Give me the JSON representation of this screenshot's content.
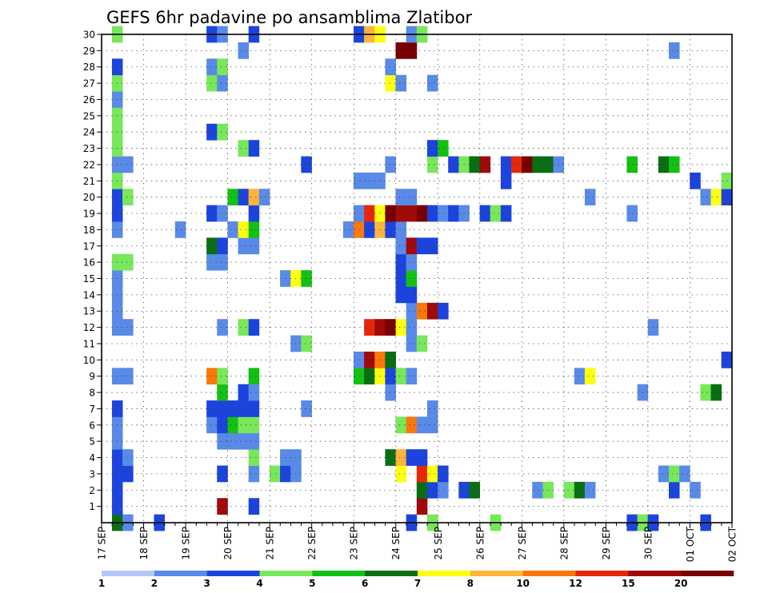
{
  "chart_data": {
    "type": "heatmap",
    "title": "GEFS 6hr padavine po ansamblima Zlatibor",
    "xlabel": "",
    "ylabel": "",
    "x_tick_labels": [
      "17 SEP",
      "18 SEP",
      "19 SEP",
      "20 SEP",
      "21 SEP",
      "22 SEP",
      "23 SEP",
      "24 SEP",
      "25 SEP",
      "26 SEP",
      "27 SEP",
      "28 SEP",
      "29 SEP",
      "30 SEP",
      "01 OCT",
      "02 OCT"
    ],
    "x_steps_per_day": 4,
    "x_range_steps": [
      0,
      60
    ],
    "y_tick_labels": [
      "1",
      "2",
      "3",
      "4",
      "5",
      "6",
      "7",
      "8",
      "9",
      "10",
      "11",
      "12",
      "13",
      "14",
      "15",
      "16",
      "17",
      "18",
      "19",
      "20",
      "21",
      "22",
      "23",
      "24",
      "25",
      "26",
      "27",
      "28",
      "29",
      "30"
    ],
    "y_range": [
      0,
      30
    ],
    "grid": true,
    "colorbar": {
      "placement": "bottom",
      "levels": [
        1,
        2,
        3,
        4,
        5,
        6,
        7,
        8,
        10,
        12,
        15,
        20
      ],
      "colors": [
        "#b4c8f6",
        "#5a8ae8",
        "#1c44dc",
        "#78e85a",
        "#14c014",
        "#0a6e14",
        "#ffff14",
        "#ffb43c",
        "#fa780a",
        "#e6280a",
        "#a00a0a",
        "#780000"
      ]
    },
    "cells": [
      [
        1,
        0,
        5
      ],
      [
        5,
        0,
        2
      ],
      [
        2,
        0,
        1
      ],
      [
        29,
        0,
        2
      ],
      [
        31,
        0,
        3
      ],
      [
        37,
        0,
        3
      ],
      [
        50,
        0,
        2
      ],
      [
        51,
        0,
        3
      ],
      [
        52,
        0,
        2
      ],
      [
        57,
        0,
        2
      ],
      [
        1,
        1,
        2
      ],
      [
        11,
        1,
        10
      ],
      [
        14,
        1,
        2
      ],
      [
        30,
        1,
        10
      ],
      [
        1,
        2,
        2
      ],
      [
        30,
        2,
        5
      ],
      [
        31,
        2,
        2
      ],
      [
        32,
        2,
        1
      ],
      [
        34,
        2,
        2
      ],
      [
        35,
        2,
        5
      ],
      [
        41,
        2,
        1
      ],
      [
        42,
        2,
        3
      ],
      [
        44,
        2,
        3
      ],
      [
        45,
        2,
        5
      ],
      [
        46,
        2,
        1
      ],
      [
        54,
        2,
        2
      ],
      [
        56,
        2,
        1
      ],
      [
        1,
        3,
        2
      ],
      [
        2,
        3,
        2
      ],
      [
        11,
        3,
        2
      ],
      [
        14,
        3,
        1
      ],
      [
        16,
        3,
        3
      ],
      [
        17,
        3,
        2
      ],
      [
        18,
        3,
        1
      ],
      [
        28,
        3,
        6
      ],
      [
        30,
        3,
        9
      ],
      [
        31,
        3,
        6
      ],
      [
        32,
        3,
        2
      ],
      [
        53,
        3,
        1
      ],
      [
        54,
        3,
        3
      ],
      [
        55,
        3,
        1
      ],
      [
        1,
        4,
        2
      ],
      [
        2,
        4,
        1
      ],
      [
        14,
        4,
        3
      ],
      [
        17,
        4,
        1
      ],
      [
        18,
        4,
        1
      ],
      [
        27,
        4,
        5
      ],
      [
        28,
        4,
        7
      ],
      [
        29,
        4,
        2
      ],
      [
        30,
        4,
        2
      ],
      [
        1,
        5,
        1
      ],
      [
        11,
        5,
        1
      ],
      [
        12,
        5,
        1
      ],
      [
        13,
        5,
        1
      ],
      [
        14,
        5,
        1
      ],
      [
        1,
        6,
        1
      ],
      [
        10,
        6,
        1
      ],
      [
        11,
        6,
        2
      ],
      [
        12,
        6,
        4
      ],
      [
        13,
        6,
        3
      ],
      [
        14,
        6,
        3
      ],
      [
        28,
        6,
        3
      ],
      [
        29,
        6,
        8
      ],
      [
        30,
        6,
        1
      ],
      [
        31,
        6,
        1
      ],
      [
        1,
        7,
        2
      ],
      [
        10,
        7,
        2
      ],
      [
        11,
        7,
        2
      ],
      [
        12,
        7,
        2
      ],
      [
        13,
        7,
        2
      ],
      [
        14,
        7,
        2
      ],
      [
        19,
        7,
        1
      ],
      [
        31,
        7,
        1
      ],
      [
        11,
        8,
        4
      ],
      [
        13,
        8,
        2
      ],
      [
        14,
        8,
        1
      ],
      [
        27,
        8,
        1
      ],
      [
        51,
        8,
        1
      ],
      [
        57,
        8,
        3
      ],
      [
        58,
        8,
        5
      ],
      [
        1,
        9,
        1
      ],
      [
        2,
        9,
        1
      ],
      [
        10,
        9,
        8
      ],
      [
        11,
        9,
        3
      ],
      [
        14,
        9,
        4
      ],
      [
        24,
        9,
        4
      ],
      [
        25,
        9,
        5
      ],
      [
        26,
        9,
        6
      ],
      [
        27,
        9,
        2
      ],
      [
        28,
        9,
        3
      ],
      [
        29,
        9,
        1
      ],
      [
        45,
        9,
        1
      ],
      [
        46,
        9,
        6
      ],
      [
        24,
        10,
        1
      ],
      [
        25,
        10,
        10
      ],
      [
        26,
        10,
        8
      ],
      [
        27,
        10,
        5
      ],
      [
        59,
        10,
        2
      ],
      [
        18,
        11,
        1
      ],
      [
        19,
        11,
        3
      ],
      [
        29,
        11,
        1
      ],
      [
        30,
        11,
        3
      ],
      [
        1,
        12,
        1
      ],
      [
        2,
        12,
        1
      ],
      [
        11,
        12,
        1
      ],
      [
        13,
        12,
        3
      ],
      [
        14,
        12,
        2
      ],
      [
        25,
        12,
        9
      ],
      [
        26,
        12,
        10
      ],
      [
        27,
        12,
        11
      ],
      [
        28,
        12,
        6
      ],
      [
        29,
        12,
        1
      ],
      [
        52,
        12,
        1
      ],
      [
        1,
        13,
        1
      ],
      [
        29,
        13,
        1
      ],
      [
        30,
        13,
        8
      ],
      [
        31,
        13,
        10
      ],
      [
        32,
        13,
        2
      ],
      [
        1,
        14,
        1
      ],
      [
        28,
        14,
        2
      ],
      [
        29,
        14,
        2
      ],
      [
        1,
        15,
        1
      ],
      [
        17,
        15,
        1
      ],
      [
        18,
        15,
        6
      ],
      [
        19,
        15,
        4
      ],
      [
        28,
        15,
        2
      ],
      [
        29,
        15,
        4
      ],
      [
        1,
        16,
        3
      ],
      [
        2,
        16,
        3
      ],
      [
        10,
        16,
        1
      ],
      [
        11,
        16,
        1
      ],
      [
        28,
        16,
        2
      ],
      [
        29,
        16,
        1
      ],
      [
        10,
        17,
        5
      ],
      [
        11,
        17,
        2
      ],
      [
        13,
        17,
        1
      ],
      [
        14,
        17,
        1
      ],
      [
        28,
        17,
        1
      ],
      [
        29,
        17,
        10
      ],
      [
        30,
        17,
        2
      ],
      [
        31,
        17,
        2
      ],
      [
        1,
        18,
        1
      ],
      [
        7,
        18,
        1
      ],
      [
        12,
        18,
        1
      ],
      [
        13,
        18,
        6
      ],
      [
        14,
        18,
        4
      ],
      [
        23,
        18,
        1
      ],
      [
        24,
        18,
        8
      ],
      [
        25,
        18,
        2
      ],
      [
        26,
        18,
        7
      ],
      [
        27,
        18,
        2
      ],
      [
        28,
        18,
        1
      ],
      [
        1,
        19,
        2
      ],
      [
        10,
        19,
        2
      ],
      [
        11,
        19,
        1
      ],
      [
        14,
        19,
        2
      ],
      [
        24,
        19,
        1
      ],
      [
        25,
        19,
        9
      ],
      [
        26,
        19,
        6
      ],
      [
        27,
        19,
        11
      ],
      [
        28,
        19,
        10
      ],
      [
        29,
        19,
        10
      ],
      [
        30,
        19,
        11
      ],
      [
        31,
        19,
        2
      ],
      [
        32,
        19,
        1
      ],
      [
        33,
        19,
        2
      ],
      [
        34,
        19,
        1
      ],
      [
        36,
        19,
        2
      ],
      [
        37,
        19,
        3
      ],
      [
        38,
        19,
        2
      ],
      [
        50,
        19,
        1
      ],
      [
        1,
        20,
        2
      ],
      [
        2,
        20,
        3
      ],
      [
        12,
        20,
        4
      ],
      [
        13,
        20,
        2
      ],
      [
        14,
        20,
        7
      ],
      [
        15,
        20,
        1
      ],
      [
        28,
        20,
        1
      ],
      [
        29,
        20,
        1
      ],
      [
        46,
        20,
        1
      ],
      [
        57,
        20,
        1
      ],
      [
        58,
        20,
        6
      ],
      [
        59,
        20,
        2
      ],
      [
        1,
        21,
        3
      ],
      [
        24,
        21,
        1
      ],
      [
        25,
        21,
        1
      ],
      [
        26,
        21,
        1
      ],
      [
        38,
        21,
        2
      ],
      [
        56,
        21,
        2
      ],
      [
        59,
        21,
        3
      ],
      [
        1,
        22,
        1
      ],
      [
        2,
        22,
        1
      ],
      [
        19,
        22,
        2
      ],
      [
        27,
        22,
        1
      ],
      [
        31,
        22,
        3
      ],
      [
        33,
        22,
        2
      ],
      [
        34,
        22,
        3
      ],
      [
        35,
        22,
        5
      ],
      [
        36,
        22,
        10
      ],
      [
        38,
        22,
        2
      ],
      [
        39,
        22,
        9
      ],
      [
        40,
        22,
        11
      ],
      [
        41,
        22,
        5
      ],
      [
        42,
        22,
        5
      ],
      [
        43,
        22,
        1
      ],
      [
        50,
        22,
        4
      ],
      [
        53,
        22,
        5
      ],
      [
        54,
        22,
        4
      ],
      [
        1,
        23,
        3
      ],
      [
        13,
        23,
        3
      ],
      [
        14,
        23,
        2
      ],
      [
        31,
        23,
        2
      ],
      [
        32,
        23,
        4
      ],
      [
        1,
        24,
        3
      ],
      [
        10,
        24,
        2
      ],
      [
        11,
        24,
        3
      ],
      [
        1,
        25,
        3
      ],
      [
        1,
        26,
        1
      ],
      [
        1,
        27,
        3
      ],
      [
        10,
        27,
        3
      ],
      [
        11,
        27,
        1
      ],
      [
        27,
        27,
        6
      ],
      [
        28,
        27,
        1
      ],
      [
        31,
        27,
        1
      ],
      [
        1,
        28,
        2
      ],
      [
        10,
        28,
        1
      ],
      [
        11,
        28,
        3
      ],
      [
        27,
        28,
        1
      ],
      [
        13,
        29,
        1
      ],
      [
        28,
        29,
        11
      ],
      [
        29,
        29,
        11
      ],
      [
        54,
        29,
        1
      ],
      [
        1,
        30,
        3
      ],
      [
        10,
        30,
        2
      ],
      [
        11,
        30,
        1
      ],
      [
        14,
        30,
        2
      ],
      [
        24,
        30,
        2
      ],
      [
        25,
        30,
        7
      ],
      [
        26,
        30,
        6
      ],
      [
        29,
        30,
        1
      ],
      [
        30,
        30,
        3
      ]
    ]
  }
}
